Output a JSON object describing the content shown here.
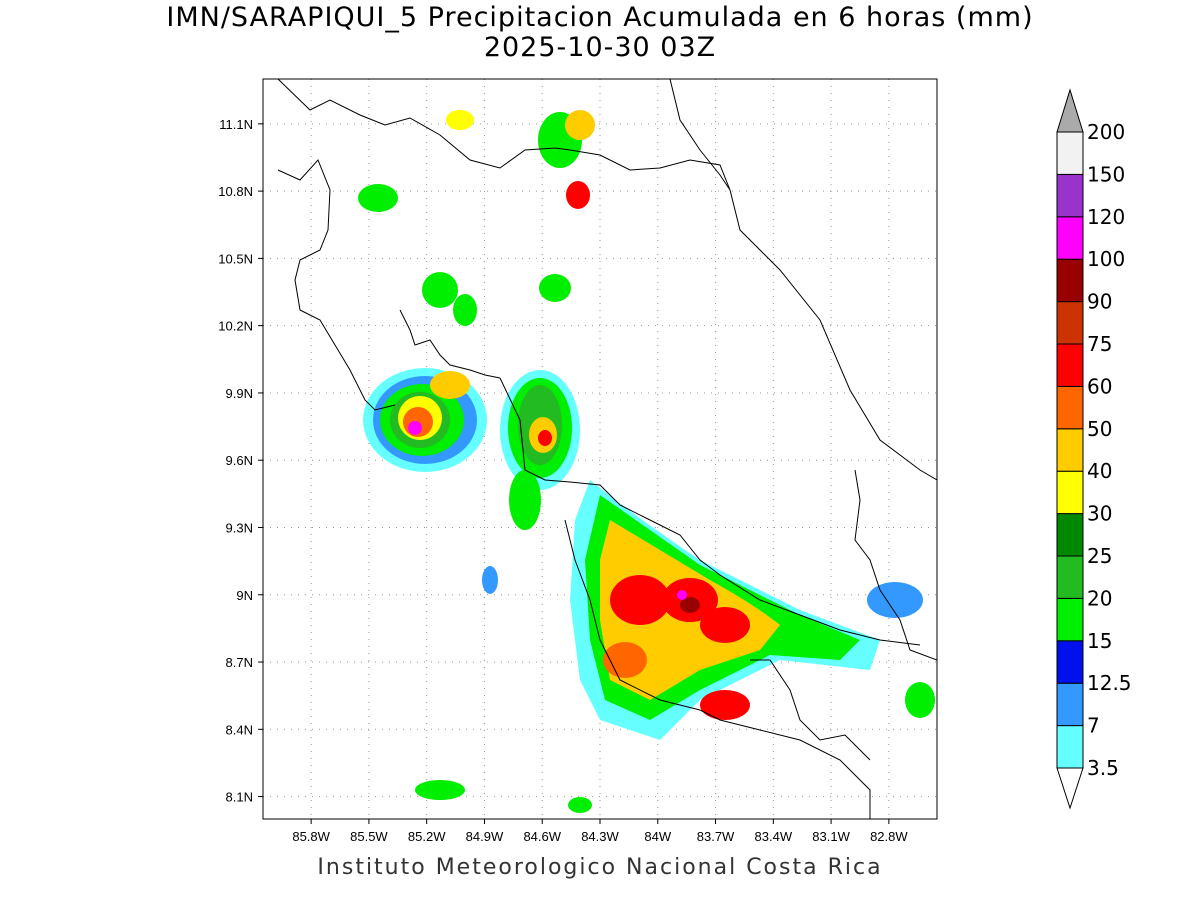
{
  "title_line1": "IMN/SARAPIQUI_5 Precipitacion Acumulada en 6 horas (mm)",
  "title_line2": "2025-10-30 03Z",
  "footer": "Instituto Meteorologico Nacional Costa Rica",
  "map": {
    "lon_range": [
      -86.05,
      -82.55
    ],
    "lat_range": [
      8.0,
      11.3
    ],
    "x_ticks": [
      "85.8W",
      "85.5W",
      "85.2W",
      "84.9W",
      "84.6W",
      "84.3W",
      "84W",
      "83.7W",
      "83.4W",
      "83.1W",
      "82.8W"
    ],
    "y_ticks": [
      "11.1N",
      "10.8N",
      "10.5N",
      "10.2N",
      "9.9N",
      "9.6N",
      "9.3N",
      "9N",
      "8.7N",
      "8.4N",
      "8.1N"
    ],
    "grid": true
  },
  "colorbar": {
    "labels": [
      "3.5",
      "7",
      "12.5",
      "15",
      "20",
      "25",
      "30",
      "40",
      "50",
      "60",
      "75",
      "90",
      "100",
      "120",
      "150",
      "200"
    ],
    "colors": [
      "#66ffff",
      "#3399ff",
      "#0011ee",
      "#00ee00",
      "#22bb22",
      "#008800",
      "#ffff00",
      "#ffcc00",
      "#ff6600",
      "#ff0000",
      "#cc3300",
      "#990000",
      "#ff00ff",
      "#9933cc",
      "#f2f2f2",
      "#aaaaaa"
    ]
  }
}
